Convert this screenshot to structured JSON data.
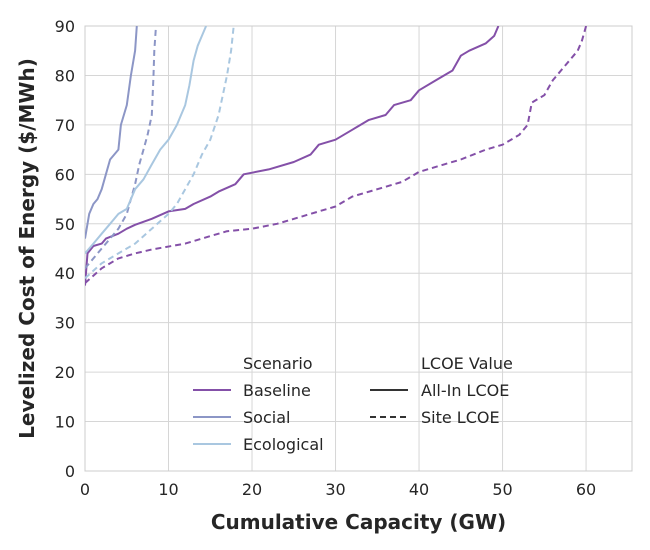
{
  "chart_data": {
    "type": "line",
    "xlabel": "Cumulative Capacity (GW)",
    "ylabel": "Levelized Cost of Energy ($/MWh)",
    "xlim": [
      0,
      65.5
    ],
    "ylim": [
      0,
      90
    ],
    "xticks": [
      "0",
      "10",
      "20",
      "30",
      "40",
      "50",
      "60"
    ],
    "yticks": [
      "0",
      "10",
      "20",
      "30",
      "40",
      "50",
      "60",
      "70",
      "80",
      "90"
    ],
    "grid": true,
    "legend": {
      "placement": "lower-center",
      "color_title": "Scenario",
      "style_title": "LCOE Value",
      "color_entries": [
        {
          "label": "Baseline",
          "color": "#8450a8"
        },
        {
          "label": "Social",
          "color": "#8c96c6"
        },
        {
          "label": "Ecological",
          "color": "#a9c7e0"
        }
      ],
      "style_entries": [
        {
          "label": "All-In LCOE",
          "dash": "solid",
          "color": "#333333"
        },
        {
          "label": "Site LCOE",
          "dash": "dashed",
          "color": "#333333"
        }
      ]
    },
    "series": [
      {
        "name": "Baseline",
        "lcoe": "All-In LCOE",
        "color": "#8450a8",
        "dash": "solid",
        "points": [
          [
            0,
            37.5
          ],
          [
            0.3,
            44
          ],
          [
            1,
            45.5
          ],
          [
            2,
            46
          ],
          [
            2.5,
            47
          ],
          [
            4,
            48
          ],
          [
            5,
            49
          ],
          [
            6,
            49.8
          ],
          [
            8,
            51
          ],
          [
            10,
            52.5
          ],
          [
            12,
            53
          ],
          [
            13,
            54
          ],
          [
            15,
            55.5
          ],
          [
            16,
            56.5
          ],
          [
            18,
            58
          ],
          [
            19,
            60
          ],
          [
            22,
            61
          ],
          [
            25,
            62.5
          ],
          [
            27,
            64
          ],
          [
            28,
            66
          ],
          [
            30,
            67
          ],
          [
            32,
            69
          ],
          [
            34,
            71
          ],
          [
            36,
            72
          ],
          [
            37,
            74
          ],
          [
            39,
            75
          ],
          [
            40,
            77
          ],
          [
            42,
            79
          ],
          [
            44,
            81
          ],
          [
            45,
            84
          ],
          [
            46,
            85
          ],
          [
            48,
            86.5
          ],
          [
            49,
            88
          ],
          [
            49.5,
            90
          ]
        ]
      },
      {
        "name": "Baseline",
        "lcoe": "Site LCOE",
        "color": "#8450a8",
        "dash": "dashed",
        "points": [
          [
            0,
            38
          ],
          [
            2,
            41
          ],
          [
            4,
            43
          ],
          [
            6,
            44
          ],
          [
            8,
            44.8
          ],
          [
            12,
            46
          ],
          [
            15,
            47.5
          ],
          [
            17,
            48.5
          ],
          [
            20,
            49
          ],
          [
            23,
            50
          ],
          [
            26,
            51.5
          ],
          [
            28,
            52.5
          ],
          [
            30,
            53.5
          ],
          [
            32,
            55.5
          ],
          [
            35,
            57
          ],
          [
            38,
            58.5
          ],
          [
            40,
            60.5
          ],
          [
            43,
            62
          ],
          [
            45,
            63
          ],
          [
            48,
            65
          ],
          [
            50,
            66
          ],
          [
            52,
            68
          ],
          [
            53,
            70
          ],
          [
            53.5,
            74.5
          ],
          [
            55,
            76
          ],
          [
            56,
            79
          ],
          [
            57,
            81
          ],
          [
            58,
            83
          ],
          [
            59,
            85
          ],
          [
            59.5,
            87
          ],
          [
            60,
            90
          ]
        ]
      },
      {
        "name": "Social",
        "lcoe": "All-In LCOE",
        "color": "#8c96c6",
        "dash": "solid",
        "points": [
          [
            0,
            47
          ],
          [
            0.5,
            52
          ],
          [
            1,
            54
          ],
          [
            1.5,
            55
          ],
          [
            2,
            57
          ],
          [
            2.5,
            60
          ],
          [
            3,
            63
          ],
          [
            4,
            65
          ],
          [
            4.3,
            70
          ],
          [
            5,
            74
          ],
          [
            5.5,
            80
          ],
          [
            6,
            85
          ],
          [
            6.2,
            90
          ]
        ]
      },
      {
        "name": "Social",
        "lcoe": "Site LCOE",
        "color": "#8c96c6",
        "dash": "dashed",
        "points": [
          [
            0,
            41
          ],
          [
            1,
            43
          ],
          [
            2,
            45
          ],
          [
            3,
            47
          ],
          [
            4,
            49
          ],
          [
            5,
            52
          ],
          [
            5.5,
            55
          ],
          [
            6,
            58
          ],
          [
            6.5,
            62
          ],
          [
            7,
            65
          ],
          [
            7.5,
            68
          ],
          [
            8,
            72
          ],
          [
            8.2,
            80
          ],
          [
            8.3,
            85
          ],
          [
            8.5,
            90
          ]
        ]
      },
      {
        "name": "Ecological",
        "lcoe": "All-In LCOE",
        "color": "#a9c7e0",
        "dash": "solid",
        "points": [
          [
            0,
            44
          ],
          [
            1,
            46
          ],
          [
            2,
            48
          ],
          [
            3,
            50
          ],
          [
            4,
            52
          ],
          [
            5,
            53
          ],
          [
            6,
            57
          ],
          [
            7,
            59
          ],
          [
            8,
            62
          ],
          [
            9,
            65
          ],
          [
            10,
            67
          ],
          [
            11,
            70
          ],
          [
            12,
            74
          ],
          [
            12.5,
            78
          ],
          [
            13,
            83
          ],
          [
            13.5,
            86
          ],
          [
            14,
            88
          ],
          [
            14.5,
            90
          ]
        ]
      },
      {
        "name": "Ecological",
        "lcoe": "Site LCOE",
        "color": "#a9c7e0",
        "dash": "dashed",
        "points": [
          [
            0,
            39
          ],
          [
            2,
            42
          ],
          [
            4,
            44
          ],
          [
            6,
            46
          ],
          [
            8,
            49
          ],
          [
            10,
            52
          ],
          [
            11,
            54
          ],
          [
            12,
            57
          ],
          [
            13,
            60
          ],
          [
            14,
            64
          ],
          [
            15,
            67
          ],
          [
            16,
            72
          ],
          [
            16.5,
            76
          ],
          [
            17,
            80
          ],
          [
            17.5,
            85
          ],
          [
            17.8,
            90
          ]
        ]
      }
    ]
  }
}
